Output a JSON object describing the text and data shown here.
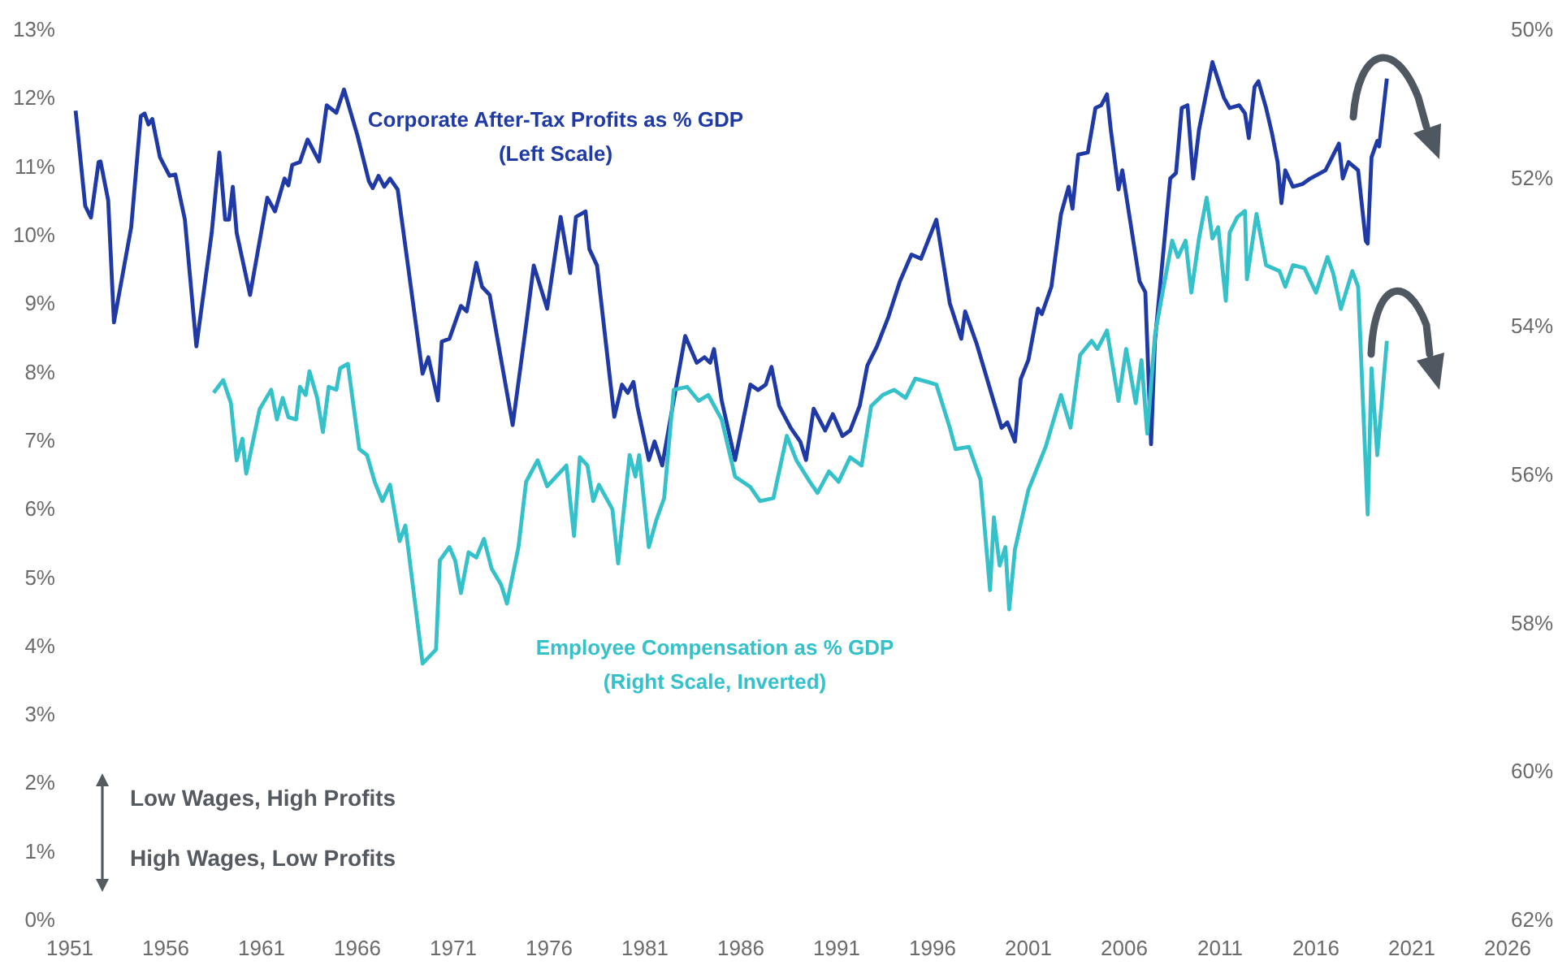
{
  "chart_data": {
    "type": "line",
    "xlim": [
      1951,
      2026
    ],
    "xticks": [
      1951,
      1956,
      1961,
      1966,
      1971,
      1976,
      1981,
      1986,
      1991,
      1996,
      2001,
      2006,
      2011,
      2016,
      2021,
      2026
    ],
    "ylim": [
      0,
      13
    ],
    "yticks": [
      {
        "value": 0,
        "label": "0%"
      },
      {
        "value": 1,
        "label": "1%"
      },
      {
        "value": 2,
        "label": "2%"
      },
      {
        "value": 3,
        "label": "3%"
      },
      {
        "value": 4,
        "label": "4%"
      },
      {
        "value": 5,
        "label": "5%"
      },
      {
        "value": 6,
        "label": "6%"
      },
      {
        "value": 7,
        "label": "7%"
      },
      {
        "value": 8,
        "label": "8%"
      },
      {
        "value": 9,
        "label": "9%"
      },
      {
        "value": 10,
        "label": "10%"
      },
      {
        "value": 11,
        "label": "11%"
      },
      {
        "value": 12,
        "label": "12%"
      },
      {
        "value": 13,
        "label": "13%"
      }
    ],
    "y2lim": [
      62,
      50
    ],
    "y2ticks": [
      {
        "value": 50,
        "label": "50%"
      },
      {
        "value": 52,
        "label": "52%"
      },
      {
        "value": 54,
        "label": "54%"
      },
      {
        "value": 56,
        "label": "56%"
      },
      {
        "value": 58,
        "label": "58%"
      },
      {
        "value": 60,
        "label": "60%"
      },
      {
        "value": 62,
        "label": "62%"
      }
    ],
    "annotations": [
      "Low Wages, High Profits",
      "High Wages, Low Profits"
    ],
    "series": [
      {
        "name": "Corporate After-Tax Profits as % GDP\n(Left Scale)",
        "color": "#1f3aa6",
        "x": [
          1951.3,
          1951.8,
          1952.1,
          1952.5,
          1952.6,
          1953.0,
          1953.3,
          1954.2,
          1954.7,
          1954.9,
          1955.1,
          1955.3,
          1955.7,
          1956.2,
          1956.5,
          1957.0,
          1957.6,
          1958.4,
          1958.8,
          1959.1,
          1959.3,
          1959.5,
          1959.7,
          1960.4,
          1961.3,
          1961.7,
          1962.2,
          1962.4,
          1962.6,
          1963.0,
          1963.4,
          1964.0,
          1964.4,
          1964.9,
          1965.3,
          1966.0,
          1966.6,
          1966.8,
          1967.1,
          1967.4,
          1967.7,
          1968.1,
          1969.4,
          1969.7,
          1970.2,
          1970.4,
          1970.8,
          1971.4,
          1971.7,
          1972.2,
          1972.5,
          1972.9,
          1974.1,
          1974.8,
          1975.2,
          1975.9,
          1976.6,
          1977.1,
          1977.4,
          1977.9,
          1978.1,
          1978.5,
          1979.4,
          1979.8,
          1980.1,
          1980.4,
          1980.6,
          1981.2,
          1981.5,
          1981.9,
          1982.5,
          1983.1,
          1983.7,
          1984.1,
          1984.4,
          1984.6,
          1985.0,
          1985.7,
          1986.5,
          1986.9,
          1987.3,
          1987.6,
          1988.0,
          1988.6,
          1989.1,
          1989.4,
          1989.8,
          1990.4,
          1990.8,
          1991.3,
          1991.7,
          1992.2,
          1992.6,
          1993.1,
          1993.7,
          1994.3,
          1994.9,
          1995.4,
          1996.2,
          1996.9,
          1997.5,
          1997.7,
          1998.3,
          1999.6,
          1999.9,
          2000.3,
          2000.6,
          2001.0,
          2001.5,
          2001.7,
          2002.2,
          2002.7,
          2003.1,
          2003.3,
          2003.6,
          2004.1,
          2004.5,
          2004.8,
          2005.1,
          2005.3,
          2005.7,
          2005.9,
          2006.8,
          2007.1,
          2007.4,
          2007.6,
          2008.4,
          2008.7,
          2009.0,
          2009.3,
          2009.6,
          2009.9,
          2010.6,
          2011.2,
          2011.5,
          2012.0,
          2012.3,
          2012.5,
          2012.8,
          2013.0,
          2013.4,
          2013.7,
          2014.0,
          2014.2,
          2014.4,
          2014.8,
          2015.3,
          2015.7,
          2016.5,
          2017.2,
          2017.4,
          2017.7,
          2018.2,
          2018.6,
          2018.7,
          2018.9,
          2019.2,
          2019.3,
          2019.7
        ],
        "values": [
          11.81,
          10.42,
          10.25,
          11.06,
          11.07,
          10.5,
          8.72,
          10.11,
          11.73,
          11.77,
          11.61,
          11.69,
          11.13,
          10.86,
          10.88,
          10.22,
          8.37,
          10.03,
          11.2,
          10.22,
          10.22,
          10.7,
          10.03,
          9.12,
          10.54,
          10.34,
          10.82,
          10.72,
          11.02,
          11.06,
          11.39,
          11.07,
          11.89,
          11.78,
          12.12,
          11.45,
          10.78,
          10.68,
          10.86,
          10.7,
          10.82,
          10.66,
          7.97,
          8.21,
          7.58,
          8.44,
          8.48,
          8.96,
          8.88,
          9.59,
          9.24,
          9.12,
          7.22,
          8.68,
          9.55,
          8.92,
          10.26,
          9.44,
          10.26,
          10.34,
          9.79,
          9.55,
          7.34,
          7.81,
          7.69,
          7.85,
          7.5,
          6.71,
          6.98,
          6.63,
          7.58,
          8.52,
          8.13,
          8.21,
          8.13,
          8.33,
          7.58,
          6.71,
          7.81,
          7.73,
          7.81,
          8.07,
          7.5,
          7.18,
          6.98,
          6.71,
          7.46,
          7.14,
          7.38,
          7.06,
          7.14,
          7.5,
          8.09,
          8.37,
          8.8,
          9.32,
          9.71,
          9.65,
          10.22,
          9.0,
          8.48,
          8.88,
          8.41,
          7.18,
          7.26,
          6.98,
          7.89,
          8.17,
          8.92,
          8.84,
          9.24,
          10.3,
          10.7,
          10.38,
          11.17,
          11.2,
          11.85,
          11.89,
          12.05,
          11.53,
          10.66,
          10.94,
          9.32,
          9.16,
          6.94,
          8.44,
          10.82,
          10.9,
          11.85,
          11.89,
          10.82,
          11.53,
          12.52,
          12.0,
          11.85,
          11.89,
          11.77,
          11.41,
          12.16,
          12.24,
          11.85,
          11.49,
          11.06,
          10.46,
          10.94,
          10.7,
          10.74,
          10.82,
          10.94,
          11.33,
          10.82,
          11.06,
          10.94,
          9.91,
          9.87,
          11.13,
          11.37,
          11.29,
          12.28
        ]
      },
      {
        "name": "Employee Compensation as % GDP\n(Right Scale, Inverted)",
        "color": "#35c1c9",
        "axis": "y2",
        "x": [
          1958.5,
          1959.0,
          1959.4,
          1959.7,
          1960.0,
          1960.2,
          1960.9,
          1961.5,
          1961.8,
          1962.1,
          1962.4,
          1962.8,
          1963.0,
          1963.3,
          1963.5,
          1963.9,
          1964.2,
          1964.5,
          1964.9,
          1965.1,
          1965.5,
          1966.1,
          1966.5,
          1966.9,
          1967.3,
          1967.7,
          1968.2,
          1968.5,
          1969.4,
          1970.1,
          1970.3,
          1970.8,
          1971.1,
          1971.4,
          1971.8,
          1972.2,
          1972.6,
          1973.0,
          1973.5,
          1973.8,
          1974.4,
          1974.8,
          1975.4,
          1975.9,
          1976.9,
          1977.3,
          1977.6,
          1978.0,
          1978.3,
          1978.6,
          1979.3,
          1979.6,
          1980.2,
          1980.5,
          1980.7,
          1981.2,
          1981.6,
          1982.0,
          1982.5,
          1983.2,
          1983.8,
          1984.3,
          1985.0,
          1985.7,
          1986.5,
          1987.0,
          1987.7,
          1988.4,
          1988.9,
          1989.6,
          1990.0,
          1990.6,
          1991.1,
          1991.7,
          1992.3,
          1992.8,
          1993.4,
          1994.0,
          1994.6,
          1995.1,
          1995.7,
          1996.2,
          1996.9,
          1997.2,
          1997.9,
          1998.5,
          1999.0,
          1999.2,
          1999.5,
          1999.8,
          2000.0,
          2000.3,
          2001.0,
          2001.9,
          2002.7,
          2003.2,
          2003.7,
          2004.3,
          2004.6,
          2005.1,
          2005.7,
          2006.1,
          2006.6,
          2006.9,
          2007.2,
          2007.6,
          2007.9,
          2008.5,
          2008.8,
          2009.2,
          2009.5,
          2009.9,
          2010.3,
          2010.6,
          2010.9,
          2011.3,
          2011.5,
          2011.9,
          2012.3,
          2012.4,
          2012.9,
          2013.4,
          2014.1,
          2014.4,
          2014.8,
          2015.4,
          2016.0,
          2016.6,
          2016.9,
          2017.3,
          2017.9,
          2018.2,
          2018.7,
          2018.9,
          2019.2,
          2019.7
        ],
        "values": [
          54.9,
          54.73,
          55.04,
          55.81,
          55.52,
          55.99,
          55.12,
          54.86,
          55.26,
          54.97,
          55.23,
          55.26,
          54.82,
          54.93,
          54.61,
          54.97,
          55.43,
          54.82,
          54.86,
          54.57,
          54.51,
          55.66,
          55.74,
          56.1,
          56.36,
          56.14,
          56.9,
          56.69,
          58.55,
          58.36,
          57.16,
          56.98,
          57.16,
          57.6,
          57.05,
          57.12,
          56.87,
          57.27,
          57.49,
          57.74,
          56.98,
          56.1,
          55.81,
          56.16,
          55.88,
          56.83,
          55.77,
          55.88,
          56.36,
          56.14,
          56.47,
          57.2,
          55.74,
          56.03,
          55.74,
          56.98,
          56.61,
          56.32,
          54.86,
          54.82,
          55.01,
          54.93,
          55.26,
          56.03,
          56.17,
          56.36,
          56.32,
          55.48,
          55.81,
          56.1,
          56.25,
          55.96,
          56.1,
          55.77,
          55.88,
          55.08,
          54.93,
          54.86,
          54.97,
          54.71,
          54.75,
          54.79,
          55.37,
          55.66,
          55.63,
          56.07,
          57.56,
          56.58,
          57.23,
          56.98,
          57.82,
          57.01,
          56.21,
          55.63,
          54.93,
          55.37,
          54.39,
          54.2,
          54.31,
          54.06,
          55.01,
          54.31,
          55.04,
          54.46,
          55.45,
          54.13,
          53.69,
          52.85,
          53.07,
          52.85,
          53.55,
          52.82,
          52.27,
          52.82,
          52.67,
          53.66,
          52.74,
          52.53,
          52.45,
          53.37,
          52.49,
          53.18,
          53.26,
          53.47,
          53.18,
          53.22,
          53.55,
          53.07,
          53.29,
          53.77,
          53.26,
          53.47,
          56.54,
          54.57,
          55.74,
          54.2
        ]
      }
    ]
  }
}
